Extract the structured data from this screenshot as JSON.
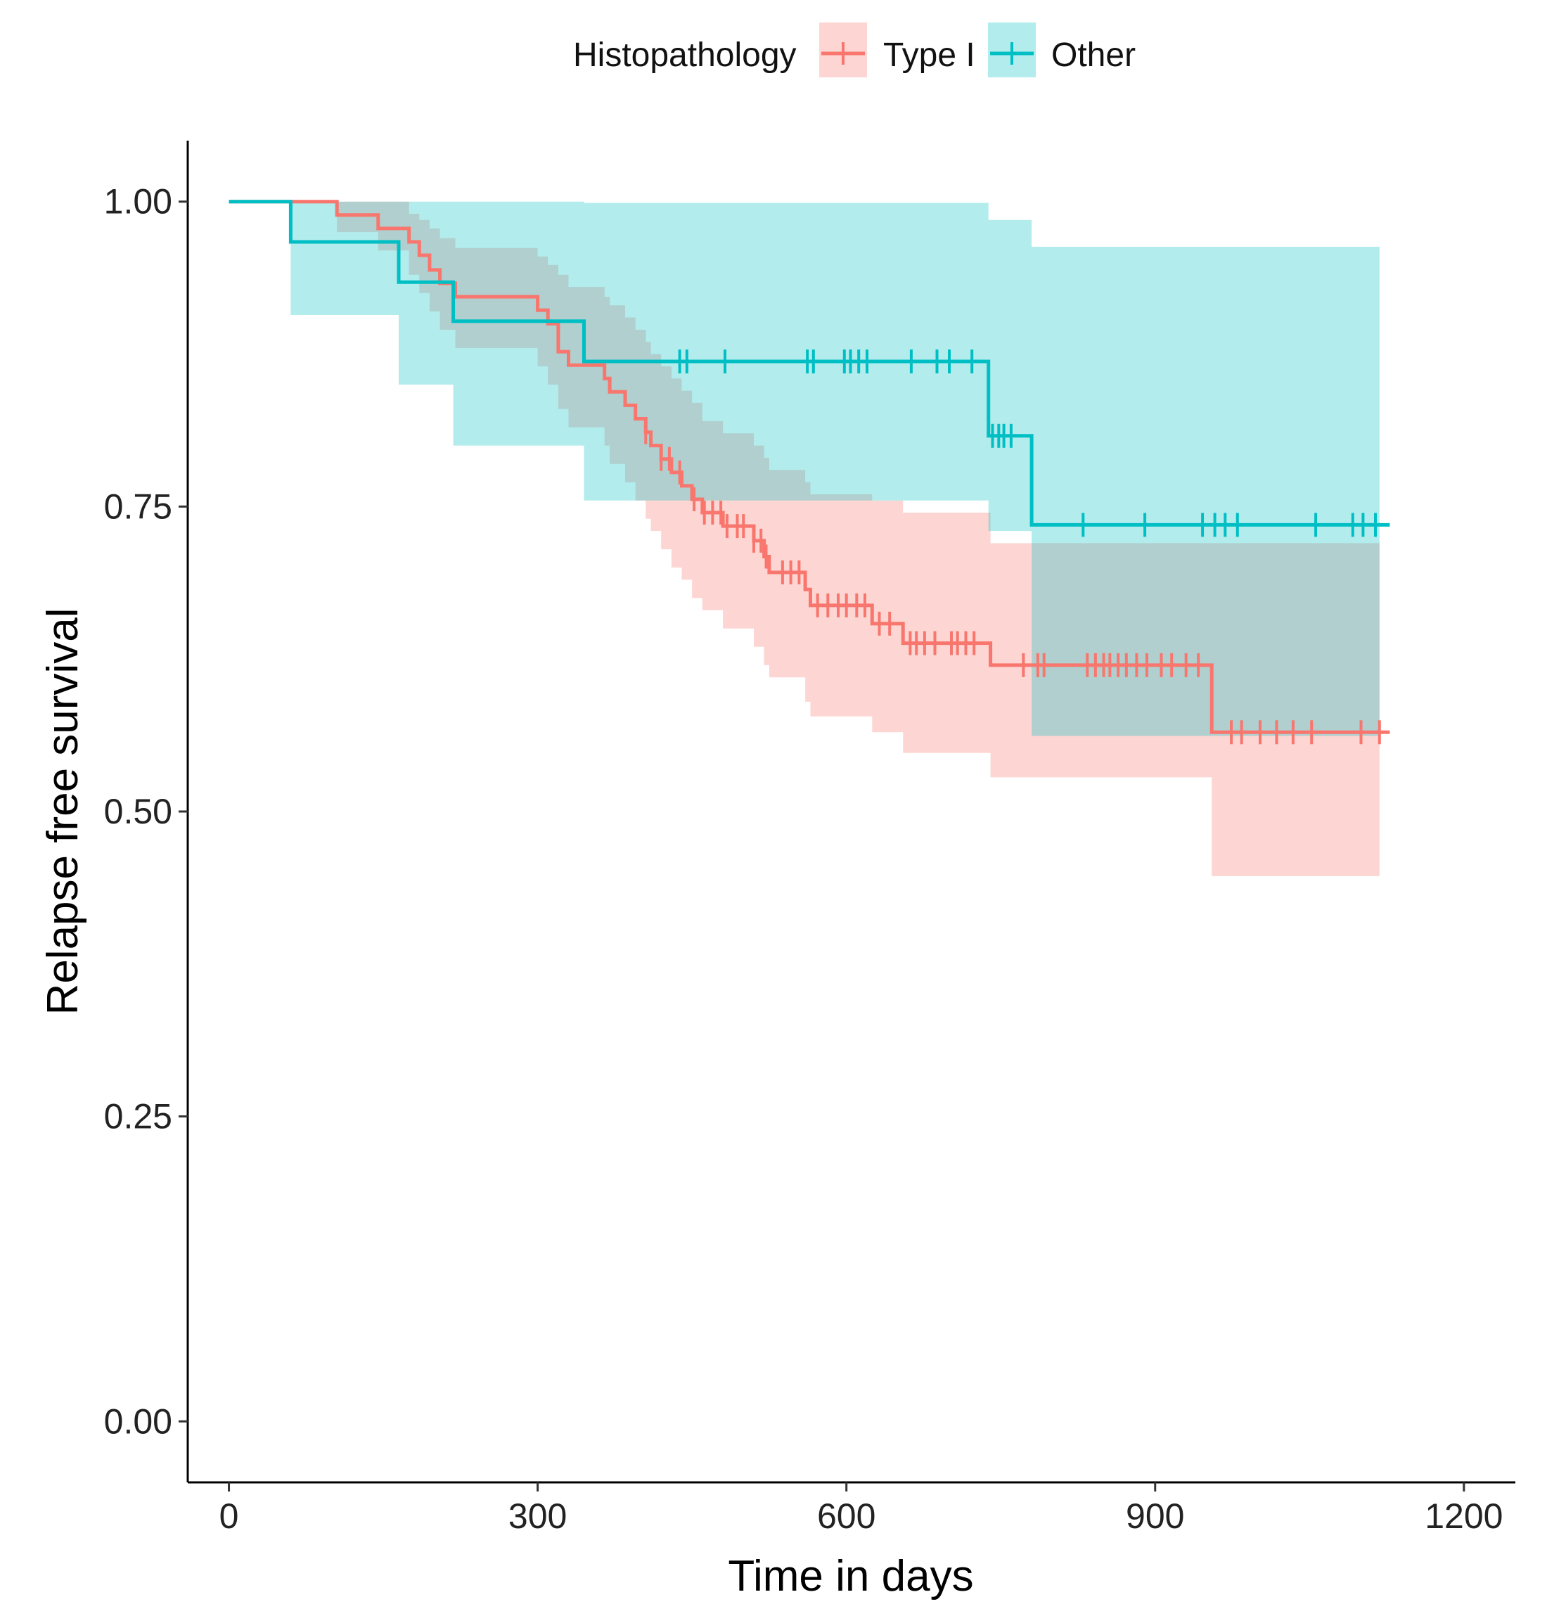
{
  "chart_data": {
    "type": "line",
    "subtype": "kaplan-meier",
    "title": "",
    "xlabel": "Time in days",
    "ylabel": "Relapse free survival",
    "xlim": [
      -40,
      1250
    ],
    "ylim": [
      -0.05,
      1.05
    ],
    "x_ticks": [
      0,
      300,
      600,
      900,
      1200
    ],
    "x_tick_labels": [
      "0",
      "300",
      "600",
      "900",
      "1200"
    ],
    "y_ticks": [
      0,
      0.25,
      0.5,
      0.75,
      1.0
    ],
    "y_tick_labels": [
      "0.00",
      "0.25",
      "0.50",
      "0.75",
      "1.00"
    ],
    "grid": false,
    "legend": {
      "title": "Histopathology",
      "position": "top",
      "entries": [
        "Type I",
        "Other"
      ]
    },
    "series": [
      {
        "name": "Type I",
        "color": "#F8766D",
        "band_color": "#F8766D",
        "steps": [
          [
            0,
            1.0
          ],
          [
            105,
            0.989
          ],
          [
            145,
            0.978
          ],
          [
            175,
            0.967
          ],
          [
            185,
            0.956
          ],
          [
            195,
            0.944
          ],
          [
            205,
            0.933
          ],
          [
            220,
            0.922
          ],
          [
            300,
            0.911
          ],
          [
            310,
            0.9
          ],
          [
            320,
            0.877
          ],
          [
            330,
            0.866
          ],
          [
            365,
            0.855
          ],
          [
            370,
            0.844
          ],
          [
            385,
            0.833
          ],
          [
            395,
            0.822
          ],
          [
            405,
            0.811
          ],
          [
            410,
            0.8
          ],
          [
            420,
            0.789
          ],
          [
            430,
            0.778
          ],
          [
            440,
            0.767
          ],
          [
            450,
            0.756
          ],
          [
            460,
            0.745
          ],
          [
            480,
            0.734
          ],
          [
            510,
            0.722
          ],
          [
            520,
            0.709
          ],
          [
            525,
            0.696
          ],
          [
            560,
            0.682
          ],
          [
            565,
            0.669
          ],
          [
            625,
            0.654
          ],
          [
            655,
            0.638
          ],
          [
            740,
            0.62
          ],
          [
            955,
            0.565
          ]
        ],
        "end_x": 1128,
        "band": [
          [
            0,
            1.0,
            1.0
          ],
          [
            105,
            1.0,
            0.975
          ],
          [
            145,
            1.0,
            0.96
          ],
          [
            175,
            0.99,
            0.94
          ],
          [
            185,
            0.985,
            0.925
          ],
          [
            195,
            0.978,
            0.91
          ],
          [
            205,
            0.97,
            0.895
          ],
          [
            220,
            0.962,
            0.88
          ],
          [
            300,
            0.955,
            0.865
          ],
          [
            310,
            0.948,
            0.85
          ],
          [
            320,
            0.94,
            0.83
          ],
          [
            330,
            0.93,
            0.815
          ],
          [
            365,
            0.922,
            0.8
          ],
          [
            370,
            0.915,
            0.785
          ],
          [
            385,
            0.905,
            0.77
          ],
          [
            395,
            0.895,
            0.755
          ],
          [
            405,
            0.885,
            0.74
          ],
          [
            410,
            0.875,
            0.73
          ],
          [
            420,
            0.865,
            0.715
          ],
          [
            430,
            0.855,
            0.7
          ],
          [
            440,
            0.845,
            0.69
          ],
          [
            450,
            0.835,
            0.675
          ],
          [
            460,
            0.82,
            0.665
          ],
          [
            480,
            0.81,
            0.65
          ],
          [
            510,
            0.8,
            0.635
          ],
          [
            520,
            0.79,
            0.62
          ],
          [
            525,
            0.78,
            0.61
          ],
          [
            560,
            0.77,
            0.59
          ],
          [
            565,
            0.76,
            0.578
          ],
          [
            625,
            0.755,
            0.565
          ],
          [
            655,
            0.745,
            0.548
          ],
          [
            740,
            0.72,
            0.528
          ],
          [
            955,
            0.72,
            0.447
          ]
        ],
        "band_end_x": 1118,
        "censored": [
          405,
          420,
          428,
          438,
          452,
          462,
          470,
          478,
          484,
          494,
          500,
          510,
          517,
          522,
          538,
          546,
          554,
          572,
          582,
          592,
          600,
          610,
          618,
          632,
          642,
          662,
          668,
          676,
          686,
          702,
          708,
          716,
          724,
          772,
          786,
          792,
          834,
          842,
          850,
          856,
          864,
          872,
          882,
          892,
          906,
          916,
          930,
          942,
          974,
          984,
          1002,
          1018,
          1034,
          1052,
          1100,
          1118
        ]
      },
      {
        "name": "Other",
        "color": "#00BFC4",
        "band_color": "#00BFC4",
        "steps": [
          [
            0,
            1.0
          ],
          [
            60,
            0.967
          ],
          [
            165,
            0.934
          ],
          [
            218,
            0.902
          ],
          [
            345,
            0.869
          ],
          [
            738,
            0.808
          ],
          [
            780,
            0.735
          ]
        ],
        "end_x": 1128,
        "band": [
          [
            0,
            1.0,
            1.0
          ],
          [
            60,
            1.0,
            0.907
          ],
          [
            165,
            1.0,
            0.85
          ],
          [
            218,
            1.0,
            0.8
          ],
          [
            345,
            0.999,
            0.755
          ],
          [
            738,
            0.985,
            0.73
          ],
          [
            780,
            0.963,
            0.562
          ]
        ],
        "band_end_x": 1118,
        "censored": [
          438,
          445,
          482,
          562,
          568,
          598,
          604,
          612,
          620,
          663,
          688,
          700,
          722,
          742,
          748,
          753,
          760,
          830,
          890,
          946,
          958,
          968,
          980,
          1056,
          1092,
          1102,
          1114
        ]
      }
    ]
  }
}
